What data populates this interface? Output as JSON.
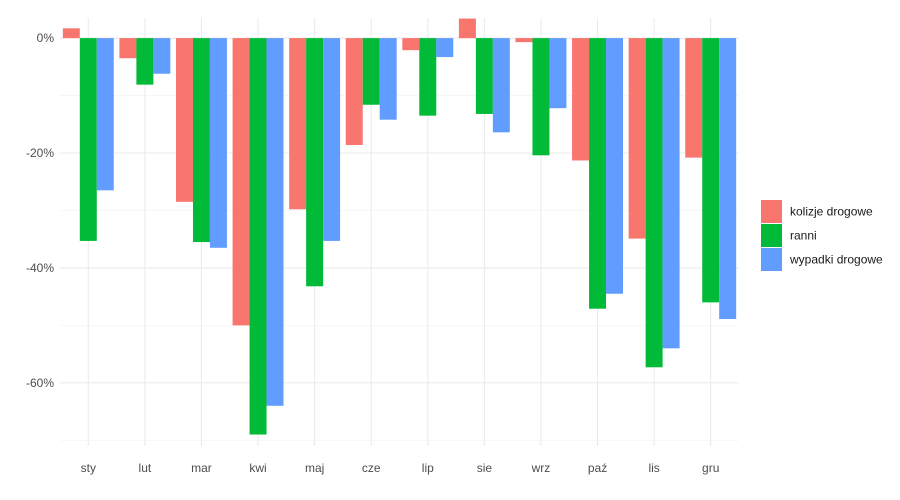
{
  "chart_data": {
    "type": "bar",
    "categories": [
      "sty",
      "lut",
      "mar",
      "kwi",
      "maj",
      "cze",
      "lip",
      "sie",
      "wrz",
      "paź",
      "lis",
      "gru"
    ],
    "series": [
      {
        "name": "kolizje drogowe",
        "color": "#F8766D",
        "values": [
          1.7,
          -3.5,
          -28.5,
          -50.0,
          -29.8,
          -18.6,
          -2.1,
          3.4,
          -0.7,
          -21.3,
          -34.9,
          -20.8
        ]
      },
      {
        "name": "ranni",
        "color": "#00BA38",
        "values": [
          -35.3,
          -8.1,
          -35.5,
          -69.0,
          -43.2,
          -11.6,
          -13.5,
          -13.2,
          -20.4,
          -47.1,
          -57.3,
          -46.0
        ]
      },
      {
        "name": "wypadki drogowe",
        "color": "#619CFF",
        "values": [
          -26.5,
          -6.2,
          -36.5,
          -64.0,
          -35.3,
          -14.2,
          -3.3,
          -16.4,
          -12.2,
          -44.5,
          -54.0,
          -48.9
        ]
      }
    ],
    "yticks": [
      "0%",
      "-20%",
      "-40%",
      "-60%"
    ],
    "ylim": [
      -71,
      3.5
    ],
    "grid": true,
    "legend_position": "right"
  }
}
